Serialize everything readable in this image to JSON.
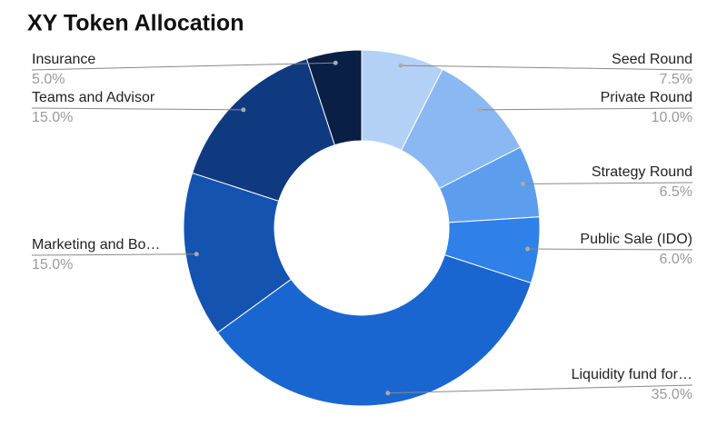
{
  "chart_data": {
    "type": "donut",
    "title": "XY Token Allocation",
    "categories": [
      "Seed Round",
      "Private Round",
      "Strategy Round",
      "Public Sale (IDO)",
      "Liquidity fund for…",
      "Marketing and Bo…",
      "Teams and Advisor",
      "Insurance"
    ],
    "values": [
      7.5,
      10.0,
      6.5,
      6.0,
      35.0,
      15.0,
      15.0,
      5.0
    ],
    "value_labels": [
      "7.5%",
      "10.0%",
      "6.5%",
      "6.0%",
      "35.0%",
      "15.0%",
      "15.0%",
      "5.0%"
    ],
    "colors": [
      "#b3d1f7",
      "#8ab8f2",
      "#5c9eed",
      "#2f80e8",
      "#1a66d1",
      "#1553b0",
      "#0f3a80",
      "#0a1f45"
    ]
  }
}
